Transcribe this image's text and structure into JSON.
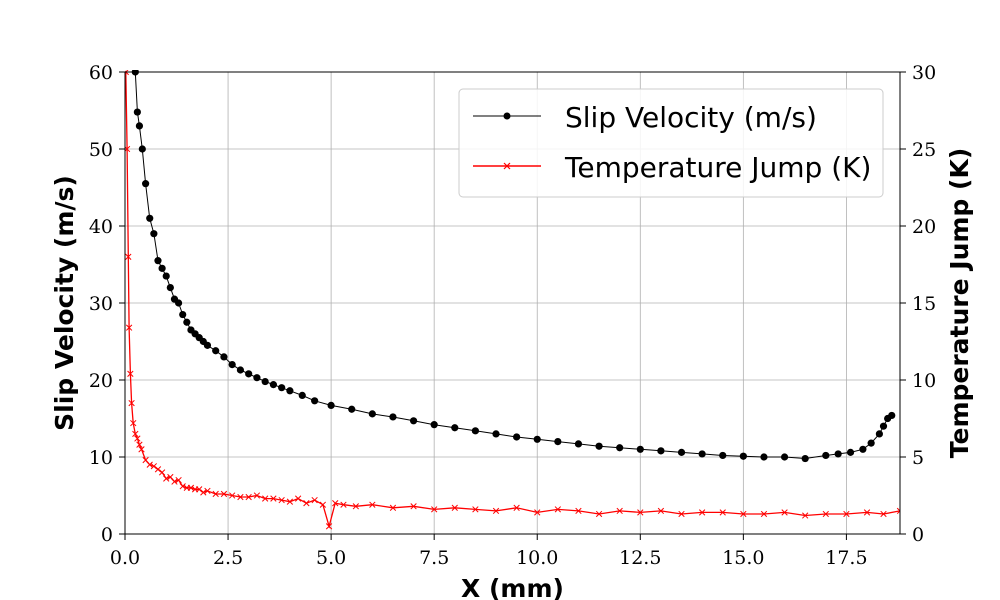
{
  "chart_data": {
    "type": "line",
    "xlabel": "X (mm)",
    "ylabel": "Slip Velocity (m/s)",
    "y2label": "Temperature Jump (K)",
    "xlim": [
      0,
      18.8
    ],
    "ylim": [
      0,
      60
    ],
    "y2lim": [
      0,
      30
    ],
    "xticks": [
      0.0,
      2.5,
      5.0,
      7.5,
      10.0,
      12.5,
      15.0,
      17.5
    ],
    "xtick_labels": [
      "0.0",
      "2.5",
      "5.0",
      "7.5",
      "10.0",
      "12.5",
      "15.0",
      "17.5"
    ],
    "yticks": [
      0,
      10,
      20,
      30,
      40,
      50,
      60
    ],
    "ytick_labels": [
      "0",
      "10",
      "20",
      "30",
      "40",
      "50",
      "60"
    ],
    "y2ticks": [
      0,
      5,
      10,
      15,
      20,
      25,
      30
    ],
    "y2tick_labels": [
      "0",
      "5",
      "10",
      "15",
      "20",
      "25",
      "30"
    ],
    "grid": true,
    "legend_position": "top-right",
    "series": [
      {
        "name": "Slip Velocity (m/s)",
        "axis": "left",
        "color": "#000000",
        "marker": "circle",
        "x": [
          0.25,
          0.3,
          0.35,
          0.42,
          0.5,
          0.6,
          0.7,
          0.8,
          0.9,
          1.0,
          1.1,
          1.2,
          1.3,
          1.4,
          1.5,
          1.6,
          1.7,
          1.8,
          1.9,
          2.0,
          2.2,
          2.4,
          2.6,
          2.8,
          3.0,
          3.2,
          3.4,
          3.6,
          3.8,
          4.0,
          4.3,
          4.6,
          5.0,
          5.5,
          6.0,
          6.5,
          7.0,
          7.5,
          8.0,
          8.5,
          9.0,
          9.5,
          10.0,
          10.5,
          11.0,
          11.5,
          12.0,
          12.5,
          13.0,
          13.5,
          14.0,
          14.5,
          15.0,
          15.5,
          16.0,
          16.5,
          17.0,
          17.3,
          17.6,
          17.9,
          18.1,
          18.3,
          18.4,
          18.5,
          18.6
        ],
        "y": [
          60,
          54.8,
          53,
          50,
          45.5,
          41,
          39,
          35.5,
          34.5,
          33.5,
          32,
          30.5,
          30,
          28.5,
          27.5,
          26.5,
          26,
          25.5,
          25,
          24.5,
          23.8,
          23,
          22,
          21.3,
          20.8,
          20.3,
          19.8,
          19.4,
          19,
          18.6,
          18,
          17.3,
          16.7,
          16.2,
          15.6,
          15.2,
          14.7,
          14.2,
          13.8,
          13.4,
          13,
          12.6,
          12.3,
          12,
          11.7,
          11.4,
          11.2,
          11,
          10.8,
          10.6,
          10.4,
          10.2,
          10.1,
          10,
          10,
          9.8,
          10.2,
          10.4,
          10.6,
          11,
          11.8,
          13,
          14,
          15,
          15.4
        ]
      },
      {
        "name": "Temperature Jump (K)",
        "axis": "right",
        "color": "#ff0000",
        "marker": "x",
        "x": [
          0.02,
          0.05,
          0.08,
          0.1,
          0.13,
          0.16,
          0.2,
          0.25,
          0.3,
          0.35,
          0.4,
          0.5,
          0.6,
          0.7,
          0.8,
          0.9,
          1.0,
          1.1,
          1.2,
          1.3,
          1.4,
          1.5,
          1.6,
          1.7,
          1.8,
          1.9,
          2.0,
          2.2,
          2.4,
          2.6,
          2.8,
          3.0,
          3.2,
          3.4,
          3.6,
          3.8,
          4.0,
          4.2,
          4.4,
          4.6,
          4.8,
          4.95,
          5.1,
          5.3,
          5.6,
          6.0,
          6.5,
          7.0,
          7.5,
          8.0,
          8.5,
          9.0,
          9.5,
          10.0,
          10.5,
          11.0,
          11.5,
          12.0,
          12.5,
          13.0,
          13.5,
          14.0,
          14.5,
          15.0,
          15.5,
          16.0,
          16.5,
          17.0,
          17.5,
          18.0,
          18.4,
          18.8
        ],
        "y": [
          30,
          25,
          18,
          13.4,
          10.4,
          8.5,
          7.2,
          6.5,
          6.2,
          5.8,
          5.5,
          4.8,
          4.5,
          4.4,
          4.2,
          4.0,
          3.6,
          3.7,
          3.4,
          3.5,
          3.1,
          3.0,
          3.0,
          2.9,
          2.9,
          2.7,
          2.8,
          2.6,
          2.6,
          2.5,
          2.4,
          2.4,
          2.5,
          2.3,
          2.3,
          2.2,
          2.1,
          2.3,
          2.0,
          2.2,
          1.9,
          0.5,
          2.0,
          1.9,
          1.8,
          1.9,
          1.7,
          1.8,
          1.6,
          1.7,
          1.6,
          1.5,
          1.7,
          1.4,
          1.6,
          1.5,
          1.3,
          1.5,
          1.4,
          1.5,
          1.3,
          1.4,
          1.4,
          1.3,
          1.3,
          1.4,
          1.2,
          1.3,
          1.3,
          1.4,
          1.3,
          1.5
        ]
      }
    ]
  }
}
